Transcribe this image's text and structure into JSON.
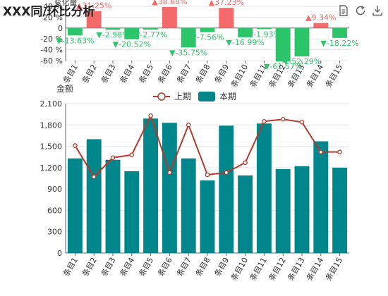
{
  "title": "XXX同/环比分析",
  "toolbox": [
    {
      "name": "data-view-icon",
      "title": "数据视图"
    },
    {
      "name": "restore-icon",
      "title": "还原"
    },
    {
      "name": "save-image-icon",
      "title": "保存为图片"
    }
  ],
  "colors": {
    "up": "#f46a6a",
    "down": "#2dc56a",
    "bar": "#00868b",
    "line": "#b23a2e",
    "axis": "#666666",
    "grid": "#e6e6e6"
  },
  "chart_data": [
    {
      "type": "bar",
      "ylabel": "变化量",
      "ylim": [
        -60,
        40
      ],
      "yticks": [
        -60,
        -40,
        -20,
        0,
        20,
        40
      ],
      "categories": [
        "条目1",
        "条目2",
        "条目3",
        "条目4",
        "条目5",
        "条目6",
        "条目7",
        "条目8",
        "条目9",
        "条目10",
        "条目11",
        "条目12",
        "条目13",
        "条目14",
        "条目15"
      ],
      "values": [
        -13.63,
        31.25,
        -2.98,
        -20.52,
        -2.77,
        38.68,
        -35.75,
        -7.56,
        37.23,
        -16.99,
        -1.93,
        -61.57,
        -52.29,
        9.34,
        -18.22
      ],
      "labels": [
        "▼-13.63%",
        "▲31.25%",
        "▼-2.98%",
        "▼-20.52%",
        "▼-2.77%",
        "▲38.68%",
        "▼-35.75%",
        "▼-7.56%",
        "▲37.23%",
        "▼-16.99%",
        "▼-1.93%",
        "▼-61.57%",
        "▼-52.29%",
        "▲9.34%",
        "▼-18.22%"
      ]
    },
    {
      "type": "bar+line",
      "ylabel": "金额",
      "ylim": [
        0,
        2100
      ],
      "yticks": [
        "0",
        "300",
        "600",
        "900",
        "1,200",
        "1,500",
        "1,800",
        "2,100"
      ],
      "legend": [
        "上期",
        "本期"
      ],
      "legend_position": "top-center",
      "categories": [
        "条目1",
        "条目2",
        "条目3",
        "条目4",
        "条目5",
        "条目6",
        "条目7",
        "条目8",
        "条目9",
        "条目10",
        "条目11",
        "条目12",
        "条目13",
        "条目14",
        "条目15"
      ],
      "series": [
        {
          "name": "上期",
          "type": "line",
          "values": [
            1510,
            1070,
            1340,
            1380,
            1930,
            1130,
            1800,
            1100,
            1130,
            1270,
            1850,
            1880,
            1840,
            1420,
            1420
          ]
        },
        {
          "name": "本期",
          "type": "bar",
          "values": [
            1330,
            1600,
            1310,
            1150,
            1890,
            1830,
            1330,
            1020,
            1790,
            1090,
            1820,
            1180,
            1220,
            1570,
            1200
          ]
        }
      ]
    }
  ]
}
